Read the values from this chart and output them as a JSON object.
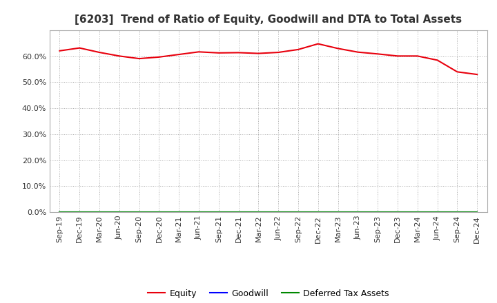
{
  "title": "[6203]  Trend of Ratio of Equity, Goodwill and DTA to Total Assets",
  "x_labels": [
    "Sep-19",
    "Dec-19",
    "Mar-20",
    "Jun-20",
    "Sep-20",
    "Dec-20",
    "Mar-21",
    "Jun-21",
    "Sep-21",
    "Dec-21",
    "Mar-22",
    "Jun-22",
    "Sep-22",
    "Dec-22",
    "Mar-23",
    "Jun-23",
    "Sep-23",
    "Dec-23",
    "Mar-24",
    "Jun-24",
    "Sep-24",
    "Dec-24"
  ],
  "equity": [
    0.621,
    0.632,
    0.615,
    0.601,
    0.591,
    0.597,
    0.607,
    0.617,
    0.613,
    0.614,
    0.611,
    0.615,
    0.626,
    0.648,
    0.63,
    0.616,
    0.609,
    0.601,
    0.601,
    0.585,
    0.54,
    0.53
  ],
  "goodwill": [
    0.0,
    0.0,
    0.0,
    0.0,
    0.0,
    0.0,
    0.0,
    0.0,
    0.0,
    0.0,
    0.0,
    0.0,
    0.0,
    0.0,
    0.0,
    0.0,
    0.0,
    0.0,
    0.0,
    0.0,
    0.0,
    0.0
  ],
  "dta": [
    0.0,
    0.0,
    0.0,
    0.0,
    0.0,
    0.0,
    0.0,
    0.0,
    0.0,
    0.0,
    0.0,
    0.0,
    0.0,
    0.0,
    0.0,
    0.0,
    0.0,
    0.0,
    0.0,
    0.0,
    0.0,
    0.0
  ],
  "equity_color": "#e8000d",
  "goodwill_color": "#0000ff",
  "dta_color": "#008800",
  "ylim": [
    0.0,
    0.7
  ],
  "yticks": [
    0.0,
    0.1,
    0.2,
    0.3,
    0.4,
    0.5,
    0.6
  ],
  "bg_color": "#ffffff",
  "plot_bg_color": "#ffffff",
  "grid_color": "#aaaaaa",
  "title_fontsize": 11,
  "tick_fontsize": 8,
  "legend_labels": [
    "Equity",
    "Goodwill",
    "Deferred Tax Assets"
  ]
}
